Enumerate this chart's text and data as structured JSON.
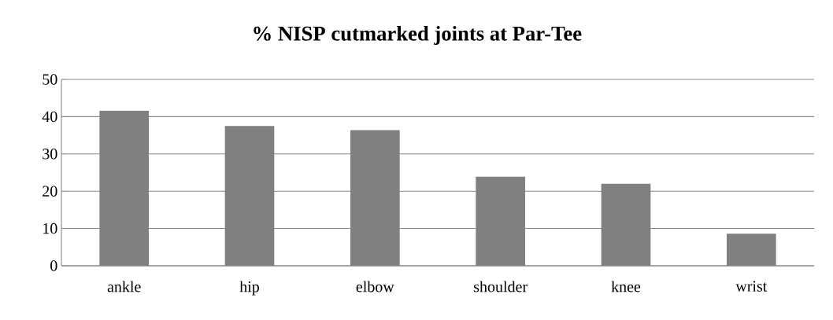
{
  "chart_data": {
    "type": "bar",
    "title": "% NISP cutmarked joints at Par-Tee",
    "categories": [
      "ankle",
      "hip",
      "elbow",
      "shoulder",
      "knee",
      "wrist"
    ],
    "values": [
      41.6,
      37.5,
      36.4,
      23.9,
      22.0,
      8.6
    ],
    "color": "#808080",
    "ylim": [
      0,
      50
    ],
    "yticks": [
      0,
      10,
      20,
      30,
      40,
      50
    ],
    "grid": "y"
  }
}
